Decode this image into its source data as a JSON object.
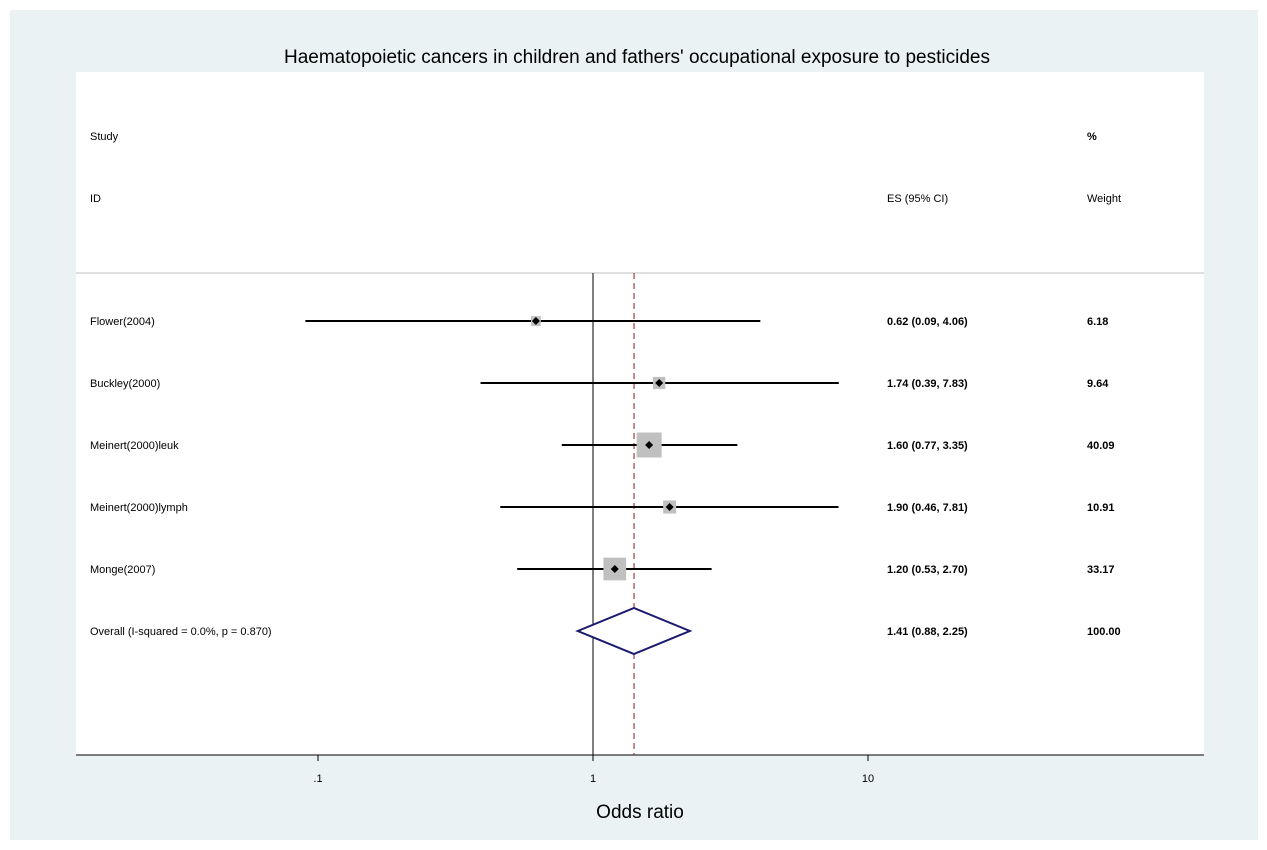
{
  "chart_data": {
    "type": "forest",
    "title": "Haematopoietic cancers in children and fathers' occupational exposure to pesticides",
    "xlabel": "Odds ratio",
    "x_scale": "log",
    "x_ticks": [
      {
        "value": 0.1,
        "label": ".1"
      },
      {
        "value": 1,
        "label": "1"
      },
      {
        "value": 10,
        "label": "10"
      }
    ],
    "headers": {
      "study_line1": "Study",
      "study_line2": "ID",
      "es": "ES (95% CI)",
      "weight_line1": "%",
      "weight_line2": "Weight"
    },
    "null_line": 1,
    "studies": [
      {
        "id": "Flower(2004)",
        "es": 0.62,
        "lo": 0.09,
        "hi": 4.06,
        "es_text": "0.62 (0.09, 4.06)",
        "weight": 6.18,
        "weight_text": "6.18"
      },
      {
        "id": "Buckley(2000)",
        "es": 1.74,
        "lo": 0.39,
        "hi": 7.83,
        "es_text": "1.74 (0.39, 7.83)",
        "weight": 9.64,
        "weight_text": "9.64"
      },
      {
        "id": "Meinert(2000)leuk",
        "es": 1.6,
        "lo": 0.77,
        "hi": 3.35,
        "es_text": "1.60 (0.77, 3.35)",
        "weight": 40.09,
        "weight_text": "40.09"
      },
      {
        "id": "Meinert(2000)lymph",
        "es": 1.9,
        "lo": 0.46,
        "hi": 7.81,
        "es_text": "1.90 (0.46, 7.81)",
        "weight": 10.91,
        "weight_text": "10.91"
      },
      {
        "id": "Monge(2007)",
        "es": 1.2,
        "lo": 0.53,
        "hi": 2.7,
        "es_text": "1.20 (0.53, 2.70)",
        "weight": 33.17,
        "weight_text": "33.17"
      }
    ],
    "overall": {
      "label": "Overall  (I-squared = 0.0%, p = 0.870)",
      "es": 1.41,
      "lo": 0.88,
      "hi": 2.25,
      "es_text": "1.41 (0.88, 2.25)",
      "weight_text": "100.00"
    },
    "colors": {
      "background": "#eaf2f3",
      "plot_area": "#ffffff",
      "ci_line": "#000000",
      "weight_box": "#c0c0c0",
      "diamond": "#1a1a6e",
      "overall_line": "#8b1a1a"
    }
  }
}
